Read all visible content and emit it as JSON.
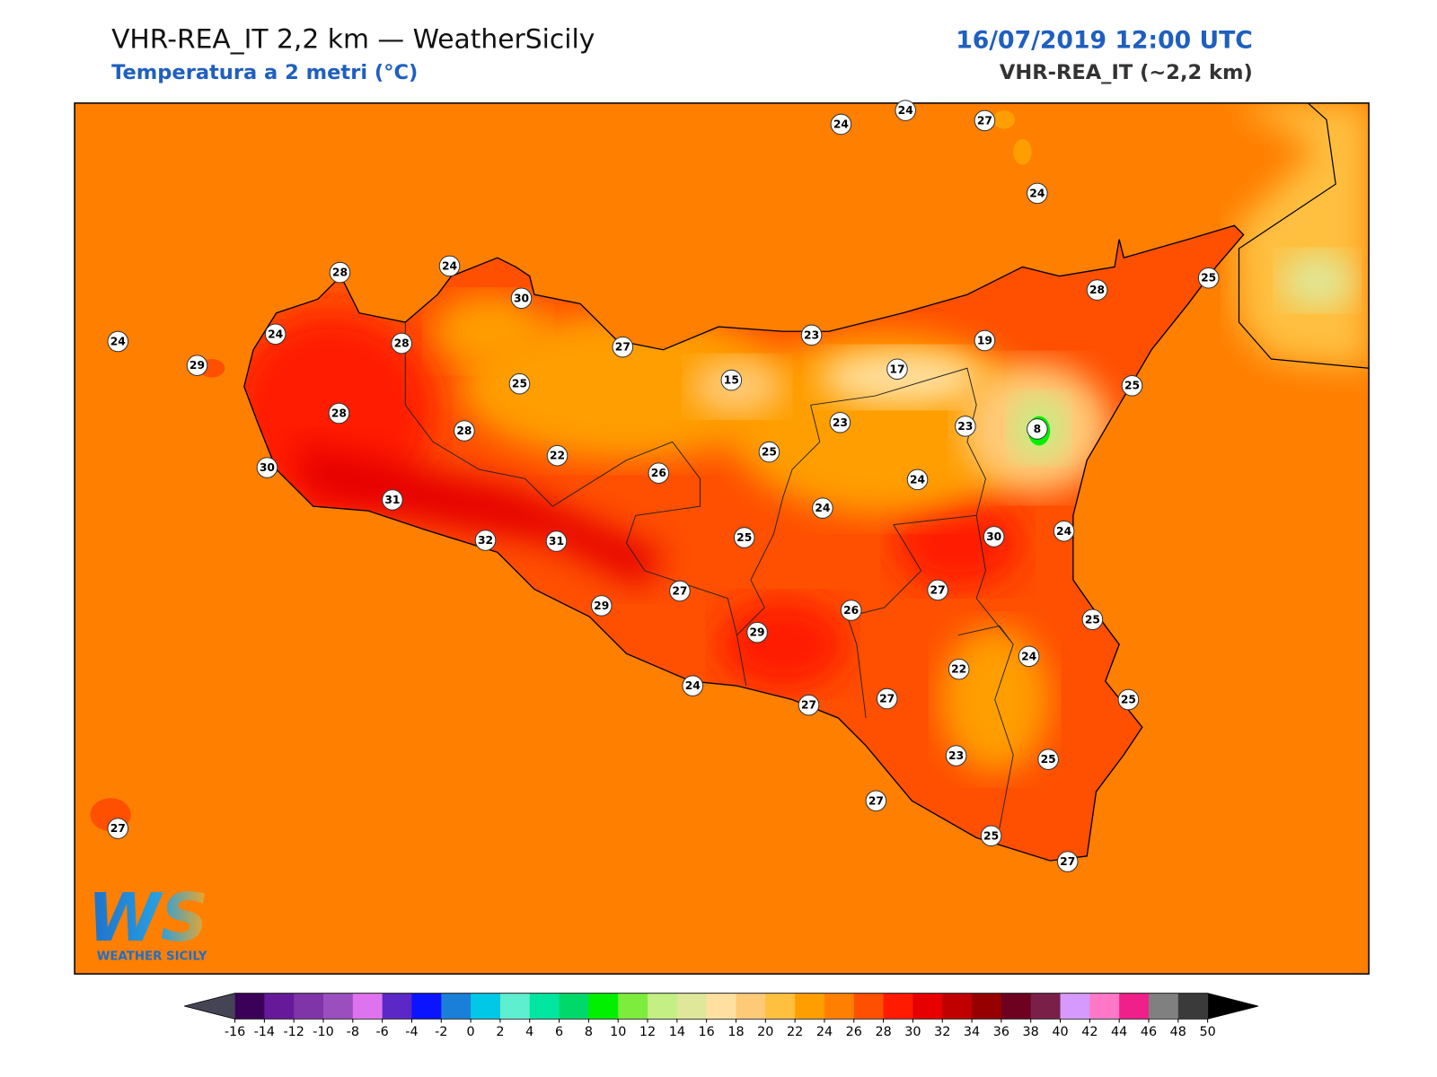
{
  "header": {
    "title": "VHR-REA_IT 2,2 km — WeatherSicily",
    "subtitle": "Temperatura a 2 metri (°C)",
    "datetime": "16/07/2019 12:00 UTC",
    "model": "VHR-REA_IT (~2,2 km)"
  },
  "logo": {
    "mark": "WS",
    "text": "WEATHER SICILY"
  },
  "stations": [
    24,
    24,
    27,
    24,
    28,
    24,
    30,
    24,
    24,
    28,
    29,
    27,
    23,
    19,
    17,
    15,
    25,
    25,
    28,
    25,
    28,
    28,
    23,
    23,
    8,
    22,
    25,
    26,
    30,
    31,
    24,
    24,
    32,
    31,
    25,
    30,
    24,
    27,
    27,
    29,
    26,
    25,
    29,
    24,
    22,
    24,
    27,
    27,
    25,
    23,
    25,
    27,
    27,
    25,
    27
  ],
  "colorbar": {
    "ticks": [
      -16,
      -14,
      -12,
      -10,
      -8,
      -6,
      -4,
      -2,
      0,
      2,
      4,
      6,
      8,
      10,
      12,
      14,
      16,
      18,
      20,
      22,
      24,
      26,
      28,
      30,
      32,
      34,
      36,
      38,
      40,
      42,
      44,
      46,
      48,
      50
    ],
    "colors": [
      "#3b0057",
      "#661a99",
      "#7f34a8",
      "#9b4fbf",
      "#df73ef",
      "#5b27c7",
      "#0a14ff",
      "#1a7fd9",
      "#00c8e6",
      "#5eeed0",
      "#00e6a0",
      "#00d96a",
      "#00f000",
      "#7dec3c",
      "#c3ef85",
      "#dfe89a",
      "#ffe0a0",
      "#ffca78",
      "#ffc040",
      "#ff9e00",
      "#ff7f00",
      "#ff4f00",
      "#ff1a00",
      "#e60000",
      "#c00000",
      "#960000",
      "#6e0020",
      "#7a2048",
      "#d69aff",
      "#ff78c8",
      "#f0208a",
      "#808080",
      "#3a3a3a"
    ],
    "under_color": "#444455",
    "over_color": "#000000"
  }
}
